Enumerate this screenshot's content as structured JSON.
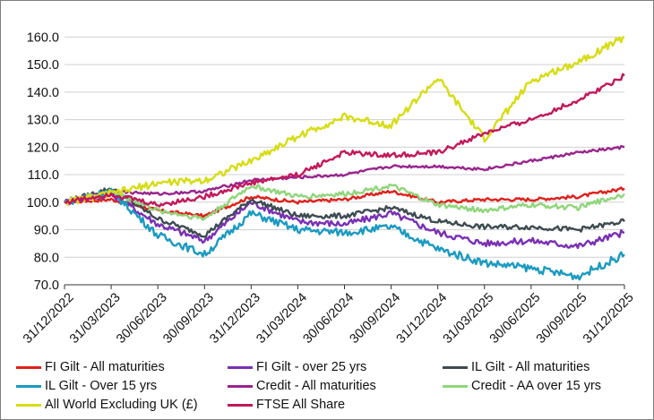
{
  "chart_data": {
    "type": "line",
    "title": "",
    "xlabel": "",
    "ylabel": "",
    "ylim": [
      70,
      165
    ],
    "y_ticks": [
      "70.0",
      "80.0",
      "90.0",
      "100.0",
      "110.0",
      "120.0",
      "130.0",
      "140.0",
      "150.0",
      "160.0"
    ],
    "x_ticks": [
      "31/12/2022",
      "31/03/2023",
      "30/06/2023",
      "30/09/2023",
      "31/12/2023",
      "31/03/2024",
      "30/06/2024",
      "30/09/2024",
      "31/12/2024",
      "31/03/2025",
      "30/06/2025",
      "30/09/2025",
      "31/12/2025"
    ],
    "grid": "horizontal",
    "legend_position": "bottom",
    "series": [
      {
        "name": "FI Gilt - All maturities",
        "color": "#e0201b",
        "x": [
          "31/12/2022",
          "31/03/2023",
          "30/06/2023",
          "30/09/2023",
          "31/12/2023",
          "31/03/2024",
          "30/06/2024",
          "30/09/2024",
          "31/12/2024",
          "31/03/2025",
          "30/06/2025",
          "30/09/2025",
          "31/12/2025"
        ],
        "y": [
          100,
          101,
          97,
          95,
          102,
          100,
          101,
          104,
          100,
          101,
          101,
          102,
          105
        ]
      },
      {
        "name": "FI Gilt - over 25 yrs",
        "color": "#7a2fb5",
        "x": [
          "31/12/2022",
          "31/03/2023",
          "30/06/2023",
          "30/09/2023",
          "31/12/2023",
          "31/03/2024",
          "30/06/2024",
          "30/09/2024",
          "31/12/2024",
          "31/03/2025",
          "30/06/2025",
          "30/09/2025",
          "31/12/2025"
        ],
        "y": [
          100,
          103,
          92,
          86,
          100,
          93,
          92,
          96,
          89,
          85,
          86,
          84,
          89
        ]
      },
      {
        "name": "IL Gilt - All maturities",
        "color": "#3d4b52",
        "x": [
          "31/12/2022",
          "31/03/2023",
          "30/06/2023",
          "30/09/2023",
          "31/12/2023",
          "31/03/2024",
          "30/06/2024",
          "30/09/2024",
          "31/12/2024",
          "31/03/2025",
          "30/06/2025",
          "30/09/2025",
          "31/12/2025"
        ],
        "y": [
          100,
          105,
          94,
          88,
          101,
          95,
          95,
          98,
          93,
          91,
          91,
          90,
          93
        ]
      },
      {
        "name": "IL Gilt - Over 15 yrs",
        "color": "#1a9ac2",
        "x": [
          "31/12/2022",
          "31/03/2023",
          "30/06/2023",
          "30/09/2023",
          "31/12/2023",
          "31/03/2024",
          "30/06/2024",
          "30/09/2024",
          "31/12/2024",
          "31/03/2025",
          "30/06/2025",
          "30/09/2025",
          "31/12/2025"
        ],
        "y": [
          100,
          104,
          88,
          81,
          96,
          90,
          89,
          91,
          83,
          78,
          76,
          73,
          81
        ]
      },
      {
        "name": "Credit - All maturities",
        "color": "#99248e",
        "x": [
          "31/12/2022",
          "31/03/2023",
          "30/06/2023",
          "30/09/2023",
          "31/12/2023",
          "31/03/2024",
          "30/06/2024",
          "30/09/2024",
          "31/12/2024",
          "31/03/2025",
          "30/06/2025",
          "30/09/2025",
          "31/12/2025"
        ],
        "y": [
          100,
          104,
          103,
          104,
          108,
          109,
          110,
          113,
          113,
          112,
          115,
          118,
          120
        ]
      },
      {
        "name": "Credit - AA over 15 yrs",
        "color": "#8fd67a",
        "x": [
          "31/12/2022",
          "31/03/2023",
          "30/06/2023",
          "30/09/2023",
          "31/12/2023",
          "31/03/2024",
          "30/06/2024",
          "30/09/2024",
          "31/12/2024",
          "31/03/2025",
          "30/06/2025",
          "30/09/2025",
          "31/12/2025"
        ],
        "y": [
          100,
          104,
          97,
          94,
          106,
          102,
          103,
          106,
          99,
          97,
          99,
          98,
          103
        ]
      },
      {
        "name": "All World Excluding UK (£)",
        "color": "#d7dc14",
        "x": [
          "31/12/2022",
          "31/03/2023",
          "30/06/2023",
          "30/09/2023",
          "31/12/2023",
          "31/03/2024",
          "30/06/2024",
          "30/09/2024",
          "31/12/2024",
          "31/03/2025",
          "30/06/2025",
          "30/09/2025",
          "31/12/2025"
        ],
        "y": [
          100,
          103,
          107,
          108,
          115,
          124,
          131,
          128,
          145,
          123,
          144,
          151,
          160
        ]
      },
      {
        "name": "FTSE All Share",
        "color": "#c2185b",
        "x": [
          "31/12/2022",
          "31/03/2023",
          "30/06/2023",
          "30/09/2023",
          "31/12/2023",
          "31/03/2024",
          "30/06/2024",
          "30/09/2024",
          "31/12/2024",
          "31/03/2025",
          "30/06/2025",
          "30/09/2025",
          "31/12/2025"
        ],
        "y": [
          100,
          103,
          99,
          102,
          107,
          110,
          118,
          117,
          118,
          125,
          130,
          137,
          146
        ]
      }
    ]
  }
}
